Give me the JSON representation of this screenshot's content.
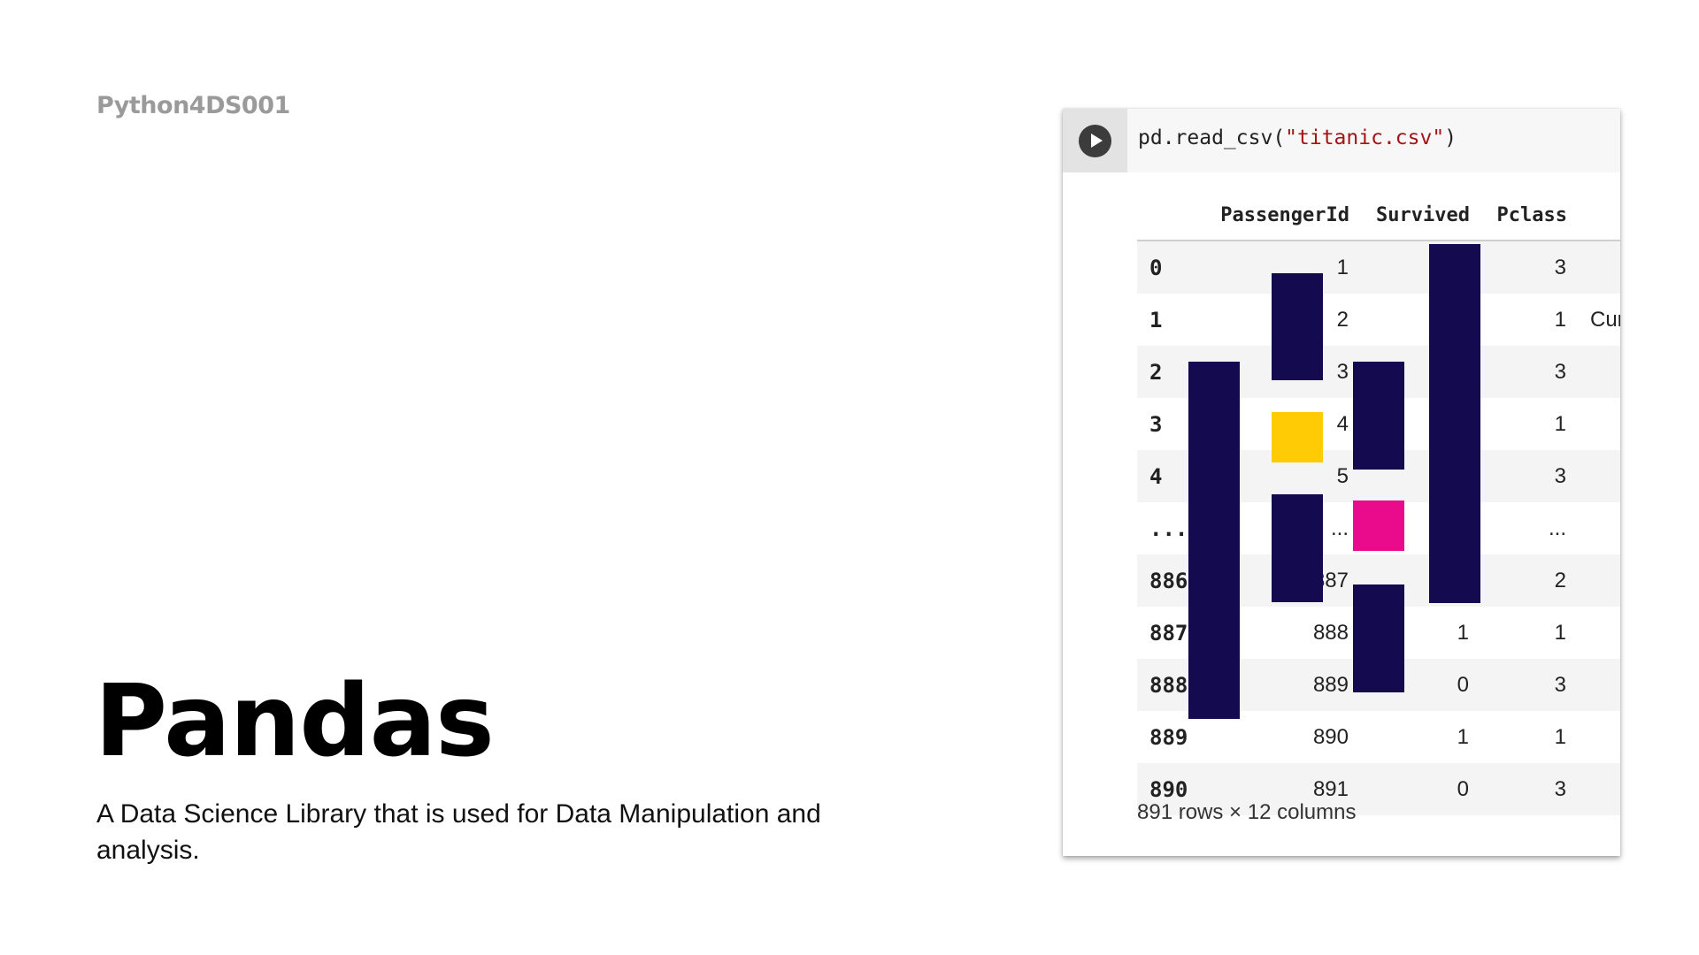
{
  "slide": {
    "kicker": "Python4DS001",
    "title": "Pandas",
    "subtitle": "A Data Science Library that is used for Data Manipulation and analysis."
  },
  "notebook": {
    "code_prefix": "pd.read_csv(",
    "code_string": "\"titanic.csv\"",
    "code_suffix": ")",
    "run_icon": "play-icon",
    "columns": [
      "",
      "PassengerId",
      "Survived",
      "Pclass",
      ""
    ],
    "rows": [
      {
        "idx": "0",
        "pid": "1",
        "surv": "",
        "pclass": "3",
        "name": ""
      },
      {
        "idx": "1",
        "pid": "2",
        "surv": "",
        "pclass": "1",
        "name": "Cur"
      },
      {
        "idx": "2",
        "pid": "3",
        "surv": "",
        "pclass": "3",
        "name": ""
      },
      {
        "idx": "3",
        "pid": "4",
        "surv": "",
        "pclass": "1",
        "name": ""
      },
      {
        "idx": "4",
        "pid": "5",
        "surv": "",
        "pclass": "3",
        "name": ""
      },
      {
        "idx": "...",
        "pid": "...",
        "surv": "",
        "pclass": "...",
        "name": ""
      },
      {
        "idx": "886",
        "pid": "887",
        "surv": "",
        "pclass": "2",
        "name": ""
      },
      {
        "idx": "887",
        "pid": "888",
        "surv": "1",
        "pclass": "1",
        "name": ""
      },
      {
        "idx": "888",
        "pid": "889",
        "surv": "0",
        "pclass": "3",
        "name": ""
      },
      {
        "idx": "889",
        "pid": "890",
        "surv": "1",
        "pclass": "1",
        "name": ""
      },
      {
        "idx": "890",
        "pid": "891",
        "surv": "0",
        "pclass": "3",
        "name": ""
      }
    ],
    "footer": "891 rows × 12 columns"
  },
  "colors": {
    "bar": "#140a4f",
    "yellow": "#ffcb05",
    "magenta": "#ea0a8c"
  }
}
